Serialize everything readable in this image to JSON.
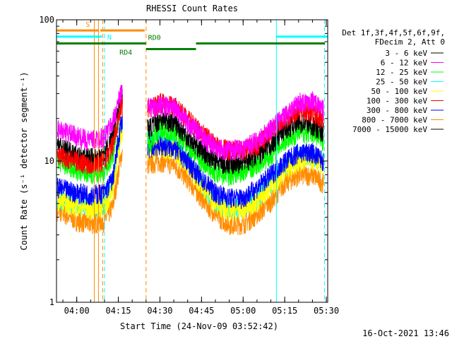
{
  "chart_data": {
    "type": "line",
    "title": "RHESSI Count Rates",
    "xlabel": "Start Time (24-Nov-09 03:52:42)",
    "ylabel": "Count Rate (s⁻¹ detector segment⁻¹)",
    "y_scale": "log",
    "ylim": [
      1,
      100
    ],
    "xlim": [
      "03:52:42",
      "05:30:30"
    ],
    "x_ticks": [
      "04:00",
      "04:15",
      "04:30",
      "04:45",
      "05:00",
      "05:15",
      "05:30"
    ],
    "y_ticks": [
      "1",
      "10",
      "100"
    ],
    "grid": false,
    "legend_position": "right",
    "legend_header": [
      "Det 1f,3f,4f,5f,6f,9f,",
      "FDecim 2, Att 0"
    ],
    "footer": "16-Oct-2021 13:46",
    "series": [
      {
        "name": "3 - 6 keV",
        "color": "#000000",
        "x": [
          "03:53",
          "04:00",
          "04:05",
          "04:10",
          "04:13",
          "04:16",
          "04:26",
          "04:30",
          "04:35",
          "04:40",
          "04:45",
          "04:50",
          "04:55",
          "05:00",
          "05:05",
          "05:10",
          "05:15",
          "05:20",
          "05:25",
          "05:29"
        ],
        "values": [
          13,
          11,
          10.5,
          11,
          15,
          30,
          17,
          20,
          19,
          15,
          12,
          10,
          9.5,
          10,
          11,
          13,
          17,
          19,
          18,
          16
        ]
      },
      {
        "name": "6 - 12 keV",
        "color": "#ff00ff",
        "x": [
          "03:53",
          "04:00",
          "04:05",
          "04:10",
          "04:13",
          "04:16",
          "04:26",
          "04:30",
          "04:35",
          "04:40",
          "04:45",
          "04:50",
          "04:55",
          "05:00",
          "05:05",
          "05:10",
          "05:15",
          "05:20",
          "05:25",
          "05:29"
        ],
        "values": [
          17,
          15,
          14,
          15,
          19,
          31,
          24,
          25,
          24,
          19,
          15,
          12.5,
          12,
          12.5,
          14,
          17,
          21,
          26,
          27,
          23
        ]
      },
      {
        "name": "12 - 25 keV",
        "color": "#00ff00",
        "x": [
          "03:53",
          "04:00",
          "04:05",
          "04:10",
          "04:13",
          "04:16",
          "04:26",
          "04:30",
          "04:35",
          "04:40",
          "04:45",
          "04:50",
          "04:55",
          "05:00",
          "05:05",
          "05:10",
          "05:15",
          "05:20",
          "05:25",
          "05:29"
        ],
        "values": [
          10,
          8.5,
          8,
          8.5,
          11,
          27,
          13.5,
          17,
          16,
          13,
          10,
          8.2,
          8,
          8.5,
          9.5,
          11,
          14,
          16,
          16,
          14
        ]
      },
      {
        "name": "25 - 50 keV",
        "color": "#00ffff",
        "x": [
          "03:53",
          "04:00",
          "04:05",
          "04:10",
          "04:13",
          "04:16",
          "04:26",
          "04:30",
          "04:35",
          "04:40",
          "04:45",
          "04:50",
          "04:55",
          "05:00",
          "05:05",
          "05:10",
          "05:15",
          "05:20",
          "05:25",
          "05:29"
        ],
        "values": [
          5.5,
          5,
          4.8,
          5,
          6.5,
          17,
          14,
          14,
          13,
          10,
          7,
          5.2,
          4.6,
          4.8,
          5.5,
          7,
          9,
          11,
          11,
          10
        ]
      },
      {
        "name": "50 - 100 keV",
        "color": "#ffff00",
        "x": [
          "03:53",
          "04:00",
          "04:05",
          "04:10",
          "04:13",
          "04:16",
          "04:26",
          "04:30",
          "04:35",
          "04:40",
          "04:45",
          "04:50",
          "04:55",
          "05:00",
          "05:05",
          "05:10",
          "05:15",
          "05:20",
          "05:25",
          "05:29"
        ],
        "values": [
          5.3,
          4.8,
          4.6,
          4.8,
          6.2,
          16,
          12,
          12.5,
          12,
          9.5,
          6.8,
          5,
          4.4,
          4.6,
          5.2,
          6.5,
          8.5,
          10,
          10.5,
          9.5
        ]
      },
      {
        "name": "100 - 300 keV",
        "color": "#ff0000",
        "x": [
          "03:53",
          "04:00",
          "04:05",
          "04:10",
          "04:13",
          "04:16",
          "04:26",
          "04:30",
          "04:35",
          "04:40",
          "04:45",
          "04:50",
          "04:55",
          "05:00",
          "05:05",
          "05:10",
          "05:15",
          "05:20",
          "05:25",
          "05:29"
        ],
        "values": [
          11,
          10,
          9.5,
          10,
          13,
          25,
          24,
          26,
          25,
          20,
          16,
          13,
          12,
          12,
          13,
          16,
          20,
          23,
          22,
          20
        ]
      },
      {
        "name": "300 - 800 keV",
        "color": "#0000ff",
        "x": [
          "03:53",
          "04:00",
          "04:05",
          "04:10",
          "04:13",
          "04:16",
          "04:26",
          "04:30",
          "04:35",
          "04:40",
          "04:45",
          "04:50",
          "04:55",
          "05:00",
          "05:05",
          "05:10",
          "05:15",
          "05:20",
          "05:25",
          "05:29"
        ],
        "values": [
          6.5,
          6,
          5.8,
          6,
          7.5,
          19,
          12.5,
          13,
          12.5,
          10,
          7.5,
          6,
          5.5,
          5.5,
          6.5,
          8,
          10,
          11.5,
          11.5,
          10
        ]
      },
      {
        "name": "800 - 7000 keV",
        "color": "#ff8c00",
        "x": [
          "03:53",
          "04:00",
          "04:05",
          "04:10",
          "04:13",
          "04:16",
          "04:26",
          "04:30",
          "04:35",
          "04:40",
          "04:45",
          "04:50",
          "04:55",
          "05:00",
          "05:05",
          "05:10",
          "05:15",
          "05:20",
          "05:25",
          "05:29"
        ],
        "values": [
          4.5,
          3.8,
          3.6,
          3.8,
          4.8,
          11,
          9.5,
          10,
          9.5,
          7.5,
          5.5,
          4.2,
          3.6,
          3.6,
          4.2,
          5.2,
          7,
          8,
          8,
          7
        ]
      },
      {
        "name": "7000 - 15000 keV",
        "color": "#000000",
        "x": [],
        "values": []
      }
    ],
    "flags": [
      {
        "name": "S",
        "color": "#ff8c00",
        "y": 84,
        "start": "03:52:42",
        "end": "04:08:00",
        "label": "S",
        "label_x": "04:04:00",
        "label_side": "above"
      },
      {
        "name": "S",
        "color": "#ff8c00",
        "y": 84,
        "start": "04:08:30",
        "end": "04:24:30",
        "label": "",
        "label_x": "",
        "label_side": "above"
      },
      {
        "name": "N",
        "color": "#00ffff",
        "y": 76,
        "start": "03:52:42",
        "end": "04:09:00",
        "label": "N",
        "label_x": "04:11:00",
        "label_side": "right"
      },
      {
        "name": "N",
        "color": "#00ffff",
        "y": 76,
        "start": "05:12:00",
        "end": "05:30:30",
        "label": "",
        "label_x": "",
        "label_side": "above"
      },
      {
        "name": "RD0",
        "color": "#008000",
        "y": 68,
        "start": "03:52:42",
        "end": "04:25:00",
        "label": "RD0",
        "label_x": "04:28:00",
        "label_side": "above"
      },
      {
        "name": "RD0",
        "color": "#008000",
        "y": 68,
        "start": "04:43:00",
        "end": "05:29:30",
        "label": "",
        "label_x": "",
        "label_side": "above"
      },
      {
        "name": "RD4",
        "color": "#008000",
        "y": 62,
        "start": "04:25:00",
        "end": "04:43:00",
        "label": "RD4",
        "label_x": "04:20:00",
        "label_side": "left"
      }
    ],
    "vertical_markers": [
      {
        "time": "04:06:20",
        "color": "#ff8c00",
        "style": "solid"
      },
      {
        "time": "04:07:50",
        "color": "#ff8c00",
        "style": "solid"
      },
      {
        "time": "04:09:20",
        "color": "#ff8c00",
        "style": "dashed"
      },
      {
        "time": "04:10:00",
        "color": "#00ffff",
        "style": "dashed"
      },
      {
        "time": "04:25:00",
        "color": "#ff8c00",
        "style": "dashed"
      },
      {
        "time": "05:12:00",
        "color": "#00ffff",
        "style": "solid"
      },
      {
        "time": "05:29:20",
        "color": "#00ffff",
        "style": "dashed"
      }
    ],
    "data_gap": {
      "start": "04:16:30",
      "end": "04:25:30"
    }
  }
}
